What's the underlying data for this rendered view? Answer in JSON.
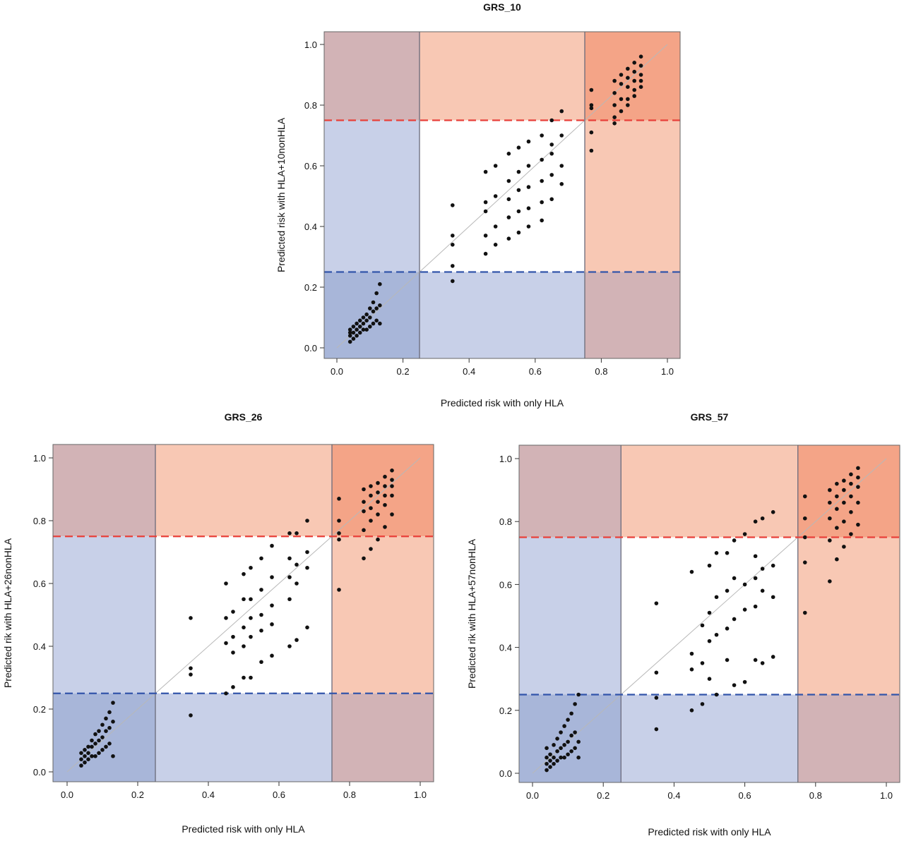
{
  "colors": {
    "blue_region": "#c8d0e8",
    "blue_corner": "#a8b6d9",
    "red_region": "#f8c8b4",
    "red_corner": "#f4a487",
    "mixed_corner": "#d2b3b6",
    "blue_line": "#3355aa",
    "red_line": "#e8403a",
    "points": "#111111"
  },
  "chart_data": [
    {
      "type": "scatter",
      "title": "GRS_10",
      "xlabel": "Predicted risk with only HLA",
      "ylabel": "Predicted risk with HLA+10nonHLA",
      "xlim": [
        0,
        1
      ],
      "ylim": [
        0,
        1
      ],
      "x_ticks": [
        "0.0",
        "0.2",
        "0.4",
        "0.6",
        "0.8",
        "1.0"
      ],
      "y_ticks": [
        "0.0",
        "0.2",
        "0.4",
        "0.6",
        "0.8",
        "1.0"
      ],
      "vertical_lines": [
        0.25,
        0.75
      ],
      "horizontal_dashed": [
        0.25,
        0.75
      ],
      "diagonal_reference": true,
      "points": [
        [
          0.04,
          0.02
        ],
        [
          0.04,
          0.04
        ],
        [
          0.04,
          0.05
        ],
        [
          0.04,
          0.06
        ],
        [
          0.05,
          0.03
        ],
        [
          0.05,
          0.05
        ],
        [
          0.05,
          0.07
        ],
        [
          0.06,
          0.04
        ],
        [
          0.06,
          0.06
        ],
        [
          0.06,
          0.08
        ],
        [
          0.07,
          0.05
        ],
        [
          0.07,
          0.07
        ],
        [
          0.07,
          0.09
        ],
        [
          0.08,
          0.06
        ],
        [
          0.08,
          0.08
        ],
        [
          0.08,
          0.1
        ],
        [
          0.09,
          0.06
        ],
        [
          0.09,
          0.09
        ],
        [
          0.09,
          0.11
        ],
        [
          0.1,
          0.07
        ],
        [
          0.1,
          0.1
        ],
        [
          0.1,
          0.13
        ],
        [
          0.11,
          0.08
        ],
        [
          0.11,
          0.12
        ],
        [
          0.11,
          0.15
        ],
        [
          0.12,
          0.09
        ],
        [
          0.12,
          0.13
        ],
        [
          0.12,
          0.18
        ],
        [
          0.13,
          0.08
        ],
        [
          0.13,
          0.14
        ],
        [
          0.13,
          0.21
        ],
        [
          0.35,
          0.47
        ],
        [
          0.35,
          0.37
        ],
        [
          0.35,
          0.34
        ],
        [
          0.35,
          0.27
        ],
        [
          0.35,
          0.22
        ],
        [
          0.45,
          0.58
        ],
        [
          0.45,
          0.48
        ],
        [
          0.45,
          0.45
        ],
        [
          0.45,
          0.37
        ],
        [
          0.45,
          0.31
        ],
        [
          0.48,
          0.6
        ],
        [
          0.48,
          0.5
        ],
        [
          0.48,
          0.4
        ],
        [
          0.48,
          0.34
        ],
        [
          0.52,
          0.64
        ],
        [
          0.52,
          0.55
        ],
        [
          0.52,
          0.49
        ],
        [
          0.52,
          0.43
        ],
        [
          0.52,
          0.36
        ],
        [
          0.55,
          0.66
        ],
        [
          0.55,
          0.58
        ],
        [
          0.55,
          0.52
        ],
        [
          0.55,
          0.45
        ],
        [
          0.55,
          0.38
        ],
        [
          0.58,
          0.68
        ],
        [
          0.58,
          0.6
        ],
        [
          0.58,
          0.53
        ],
        [
          0.58,
          0.46
        ],
        [
          0.58,
          0.4
        ],
        [
          0.62,
          0.7
        ],
        [
          0.62,
          0.62
        ],
        [
          0.62,
          0.55
        ],
        [
          0.62,
          0.48
        ],
        [
          0.62,
          0.42
        ],
        [
          0.65,
          0.75
        ],
        [
          0.65,
          0.67
        ],
        [
          0.65,
          0.64
        ],
        [
          0.65,
          0.57
        ],
        [
          0.65,
          0.49
        ],
        [
          0.68,
          0.78
        ],
        [
          0.68,
          0.7
        ],
        [
          0.68,
          0.6
        ],
        [
          0.68,
          0.54
        ],
        [
          0.77,
          0.85
        ],
        [
          0.77,
          0.8
        ],
        [
          0.77,
          0.79
        ],
        [
          0.77,
          0.71
        ],
        [
          0.77,
          0.65
        ],
        [
          0.84,
          0.88
        ],
        [
          0.84,
          0.84
        ],
        [
          0.84,
          0.8
        ],
        [
          0.84,
          0.76
        ],
        [
          0.84,
          0.74
        ],
        [
          0.86,
          0.9
        ],
        [
          0.86,
          0.87
        ],
        [
          0.86,
          0.82
        ],
        [
          0.86,
          0.78
        ],
        [
          0.88,
          0.92
        ],
        [
          0.88,
          0.89
        ],
        [
          0.88,
          0.86
        ],
        [
          0.88,
          0.82
        ],
        [
          0.88,
          0.8
        ],
        [
          0.9,
          0.94
        ],
        [
          0.9,
          0.91
        ],
        [
          0.9,
          0.88
        ],
        [
          0.9,
          0.85
        ],
        [
          0.9,
          0.83
        ],
        [
          0.92,
          0.96
        ],
        [
          0.92,
          0.93
        ],
        [
          0.92,
          0.9
        ],
        [
          0.92,
          0.88
        ],
        [
          0.92,
          0.86
        ]
      ]
    },
    {
      "type": "scatter",
      "title": "GRS_26",
      "xlabel": "Predicted risk with only HLA",
      "ylabel": "Predicted rik with HLA+26nonHLA",
      "xlim": [
        0,
        1
      ],
      "ylim": [
        0,
        1
      ],
      "x_ticks": [
        "0.0",
        "0.2",
        "0.4",
        "0.6",
        "0.8",
        "1.0"
      ],
      "y_ticks": [
        "0.0",
        "0.2",
        "0.4",
        "0.6",
        "0.8",
        "1.0"
      ],
      "vertical_lines": [
        0.25,
        0.75
      ],
      "horizontal_dashed": [
        0.25,
        0.75
      ],
      "diagonal_reference": true,
      "points": [
        [
          0.04,
          0.02
        ],
        [
          0.04,
          0.04
        ],
        [
          0.04,
          0.06
        ],
        [
          0.05,
          0.03
        ],
        [
          0.05,
          0.05
        ],
        [
          0.05,
          0.07
        ],
        [
          0.06,
          0.04
        ],
        [
          0.06,
          0.06
        ],
        [
          0.06,
          0.08
        ],
        [
          0.07,
          0.05
        ],
        [
          0.07,
          0.08
        ],
        [
          0.07,
          0.1
        ],
        [
          0.08,
          0.05
        ],
        [
          0.08,
          0.09
        ],
        [
          0.08,
          0.12
        ],
        [
          0.09,
          0.06
        ],
        [
          0.09,
          0.1
        ],
        [
          0.09,
          0.13
        ],
        [
          0.1,
          0.07
        ],
        [
          0.1,
          0.11
        ],
        [
          0.1,
          0.15
        ],
        [
          0.11,
          0.08
        ],
        [
          0.11,
          0.13
        ],
        [
          0.11,
          0.17
        ],
        [
          0.12,
          0.09
        ],
        [
          0.12,
          0.14
        ],
        [
          0.12,
          0.19
        ],
        [
          0.13,
          0.05
        ],
        [
          0.13,
          0.16
        ],
        [
          0.13,
          0.22
        ],
        [
          0.35,
          0.49
        ],
        [
          0.35,
          0.33
        ],
        [
          0.35,
          0.31
        ],
        [
          0.35,
          0.18
        ],
        [
          0.45,
          0.6
        ],
        [
          0.45,
          0.49
        ],
        [
          0.45,
          0.41
        ],
        [
          0.45,
          0.25
        ],
        [
          0.47,
          0.51
        ],
        [
          0.47,
          0.43
        ],
        [
          0.47,
          0.38
        ],
        [
          0.47,
          0.27
        ],
        [
          0.5,
          0.63
        ],
        [
          0.5,
          0.55
        ],
        [
          0.5,
          0.46
        ],
        [
          0.5,
          0.4
        ],
        [
          0.5,
          0.3
        ],
        [
          0.52,
          0.65
        ],
        [
          0.52,
          0.55
        ],
        [
          0.52,
          0.49
        ],
        [
          0.52,
          0.43
        ],
        [
          0.52,
          0.3
        ],
        [
          0.55,
          0.68
        ],
        [
          0.55,
          0.58
        ],
        [
          0.55,
          0.5
        ],
        [
          0.55,
          0.45
        ],
        [
          0.55,
          0.35
        ],
        [
          0.58,
          0.72
        ],
        [
          0.58,
          0.62
        ],
        [
          0.58,
          0.53
        ],
        [
          0.58,
          0.47
        ],
        [
          0.58,
          0.37
        ],
        [
          0.63,
          0.76
        ],
        [
          0.63,
          0.68
        ],
        [
          0.63,
          0.62
        ],
        [
          0.63,
          0.55
        ],
        [
          0.63,
          0.4
        ],
        [
          0.65,
          0.76
        ],
        [
          0.65,
          0.66
        ],
        [
          0.65,
          0.6
        ],
        [
          0.65,
          0.42
        ],
        [
          0.68,
          0.8
        ],
        [
          0.68,
          0.7
        ],
        [
          0.68,
          0.65
        ],
        [
          0.68,
          0.46
        ],
        [
          0.77,
          0.87
        ],
        [
          0.77,
          0.8
        ],
        [
          0.77,
          0.76
        ],
        [
          0.77,
          0.74
        ],
        [
          0.77,
          0.58
        ],
        [
          0.84,
          0.9
        ],
        [
          0.84,
          0.86
        ],
        [
          0.84,
          0.83
        ],
        [
          0.84,
          0.77
        ],
        [
          0.84,
          0.68
        ],
        [
          0.86,
          0.91
        ],
        [
          0.86,
          0.88
        ],
        [
          0.86,
          0.84
        ],
        [
          0.86,
          0.8
        ],
        [
          0.86,
          0.71
        ],
        [
          0.88,
          0.92
        ],
        [
          0.88,
          0.89
        ],
        [
          0.88,
          0.86
        ],
        [
          0.88,
          0.82
        ],
        [
          0.88,
          0.74
        ],
        [
          0.9,
          0.94
        ],
        [
          0.9,
          0.91
        ],
        [
          0.9,
          0.88
        ],
        [
          0.9,
          0.85
        ],
        [
          0.9,
          0.78
        ],
        [
          0.92,
          0.96
        ],
        [
          0.92,
          0.93
        ],
        [
          0.92,
          0.91
        ],
        [
          0.92,
          0.88
        ],
        [
          0.92,
          0.82
        ]
      ]
    },
    {
      "type": "scatter",
      "title": "GRS_57",
      "xlabel": "Predicted risk with only HLA",
      "ylabel": "Predicted rik with HLA+57nonHLA",
      "xlim": [
        0,
        1
      ],
      "ylim": [
        0,
        1
      ],
      "x_ticks": [
        "0.0",
        "0.2",
        "0.4",
        "0.6",
        "0.8",
        "1.0"
      ],
      "y_ticks": [
        "0.0",
        "0.2",
        "0.4",
        "0.6",
        "0.8",
        "1.0"
      ],
      "vertical_lines": [
        0.25,
        0.75
      ],
      "horizontal_dashed": [
        0.25,
        0.75
      ],
      "diagonal_reference": true,
      "points": [
        [
          0.04,
          0.01
        ],
        [
          0.04,
          0.03
        ],
        [
          0.04,
          0.05
        ],
        [
          0.04,
          0.08
        ],
        [
          0.05,
          0.02
        ],
        [
          0.05,
          0.04
        ],
        [
          0.05,
          0.06
        ],
        [
          0.06,
          0.03
        ],
        [
          0.06,
          0.05
        ],
        [
          0.06,
          0.09
        ],
        [
          0.07,
          0.04
        ],
        [
          0.07,
          0.07
        ],
        [
          0.07,
          0.11
        ],
        [
          0.08,
          0.05
        ],
        [
          0.08,
          0.08
        ],
        [
          0.08,
          0.13
        ],
        [
          0.09,
          0.05
        ],
        [
          0.09,
          0.09
        ],
        [
          0.09,
          0.15
        ],
        [
          0.1,
          0.06
        ],
        [
          0.1,
          0.1
        ],
        [
          0.1,
          0.17
        ],
        [
          0.11,
          0.07
        ],
        [
          0.11,
          0.12
        ],
        [
          0.11,
          0.19
        ],
        [
          0.12,
          0.08
        ],
        [
          0.12,
          0.13
        ],
        [
          0.12,
          0.22
        ],
        [
          0.13,
          0.05
        ],
        [
          0.13,
          0.1
        ],
        [
          0.13,
          0.25
        ],
        [
          0.35,
          0.54
        ],
        [
          0.35,
          0.32
        ],
        [
          0.35,
          0.24
        ],
        [
          0.35,
          0.14
        ],
        [
          0.45,
          0.64
        ],
        [
          0.45,
          0.38
        ],
        [
          0.45,
          0.33
        ],
        [
          0.45,
          0.2
        ],
        [
          0.48,
          0.47
        ],
        [
          0.48,
          0.35
        ],
        [
          0.48,
          0.22
        ],
        [
          0.5,
          0.66
        ],
        [
          0.5,
          0.51
        ],
        [
          0.5,
          0.42
        ],
        [
          0.5,
          0.3
        ],
        [
          0.52,
          0.7
        ],
        [
          0.52,
          0.56
        ],
        [
          0.52,
          0.44
        ],
        [
          0.52,
          0.25
        ],
        [
          0.55,
          0.7
        ],
        [
          0.55,
          0.58
        ],
        [
          0.55,
          0.46
        ],
        [
          0.55,
          0.36
        ],
        [
          0.57,
          0.74
        ],
        [
          0.57,
          0.62
        ],
        [
          0.57,
          0.49
        ],
        [
          0.57,
          0.28
        ],
        [
          0.6,
          0.76
        ],
        [
          0.6,
          0.6
        ],
        [
          0.6,
          0.52
        ],
        [
          0.6,
          0.29
        ],
        [
          0.63,
          0.8
        ],
        [
          0.63,
          0.69
        ],
        [
          0.63,
          0.62
        ],
        [
          0.63,
          0.53
        ],
        [
          0.63,
          0.36
        ],
        [
          0.65,
          0.81
        ],
        [
          0.65,
          0.65
        ],
        [
          0.65,
          0.58
        ],
        [
          0.65,
          0.35
        ],
        [
          0.68,
          0.83
        ],
        [
          0.68,
          0.66
        ],
        [
          0.68,
          0.56
        ],
        [
          0.68,
          0.37
        ],
        [
          0.77,
          0.88
        ],
        [
          0.77,
          0.81
        ],
        [
          0.77,
          0.75
        ],
        [
          0.77,
          0.67
        ],
        [
          0.77,
          0.51
        ],
        [
          0.84,
          0.9
        ],
        [
          0.84,
          0.86
        ],
        [
          0.84,
          0.81
        ],
        [
          0.84,
          0.74
        ],
        [
          0.84,
          0.61
        ],
        [
          0.86,
          0.92
        ],
        [
          0.86,
          0.88
        ],
        [
          0.86,
          0.84
        ],
        [
          0.86,
          0.78
        ],
        [
          0.86,
          0.68
        ],
        [
          0.88,
          0.93
        ],
        [
          0.88,
          0.9
        ],
        [
          0.88,
          0.86
        ],
        [
          0.88,
          0.8
        ],
        [
          0.88,
          0.72
        ],
        [
          0.9,
          0.95
        ],
        [
          0.9,
          0.92
        ],
        [
          0.9,
          0.88
        ],
        [
          0.9,
          0.83
        ],
        [
          0.9,
          0.76
        ],
        [
          0.92,
          0.97
        ],
        [
          0.92,
          0.94
        ],
        [
          0.92,
          0.91
        ],
        [
          0.92,
          0.86
        ],
        [
          0.92,
          0.79
        ]
      ]
    }
  ]
}
